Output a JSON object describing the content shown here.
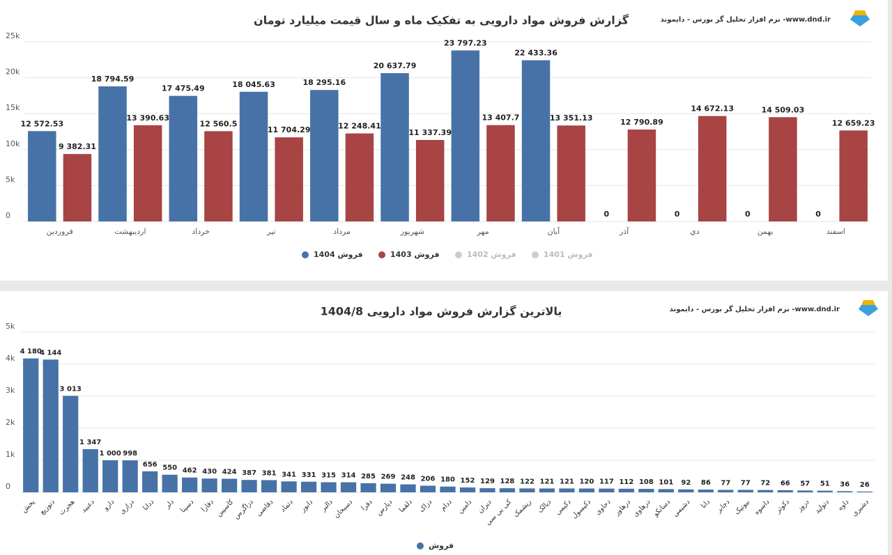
{
  "chart_data": [
    {
      "type": "bar",
      "title": "گزارش فروش مواد دارویی به تفکیک ماه و سال قیمت میلیارد تومان",
      "source": "نرم افزار تحلیل گر بورس - دایموند -www.dnd.ir",
      "categories": [
        "فروردین",
        "اردیبهشت",
        "خرداد",
        "تیر",
        "مرداد",
        "شهریور",
        "مهر",
        "آبان",
        "آذر",
        "دي",
        "بهمن",
        "اسفند"
      ],
      "series": [
        {
          "name": "فروش 1404",
          "color": "#4672a7",
          "values": [
            12572.53,
            18794.59,
            17475.49,
            18045.63,
            18295.16,
            20637.79,
            23797.23,
            22433.36,
            0,
            0,
            0,
            0
          ],
          "value_labels": [
            "12 572.53",
            "18 794.59",
            "17 475.49",
            "18 045.63",
            "18 295.16",
            "20 637.79",
            "23 797.23",
            "22 433.36",
            "0",
            "0",
            "0",
            "0"
          ]
        },
        {
          "name": "فروش 1403",
          "color": "#a84444",
          "values": [
            9382.31,
            13390.63,
            12560.5,
            11704.29,
            12248.41,
            11337.39,
            13407.7,
            13351.13,
            12790.89,
            14672.13,
            14509.03,
            12659.23
          ],
          "value_labels": [
            "9 382.31",
            "13 390.63",
            "12 560.5",
            "11 704.29",
            "12 248.41",
            "11 337.39",
            "13 407.7",
            "13 351.13",
            "12 790.89",
            "14 672.13",
            "14 509.03",
            "12 659.23"
          ]
        },
        {
          "name": "فروش 1402",
          "color": "#cccccc",
          "visible": false,
          "values": [
            null,
            null,
            null,
            null,
            null,
            null,
            null,
            null,
            null,
            null,
            null,
            null
          ]
        },
        {
          "name": "فروش 1401",
          "color": "#cccccc",
          "visible": false,
          "values": [
            null,
            null,
            null,
            null,
            null,
            null,
            null,
            null,
            null,
            null,
            null,
            null
          ]
        }
      ],
      "ylim": [
        0,
        25000
      ],
      "yticks": [
        0,
        {
          "value": 5000,
          "label": "5k"
        },
        {
          "value": 10000,
          "label": "10k"
        },
        {
          "value": 15000,
          "label": "15k"
        },
        {
          "value": 20000,
          "label": "20k"
        },
        {
          "value": 25000,
          "label": "25k"
        }
      ],
      "grid": true
    },
    {
      "type": "bar",
      "title": "بالاترین گزارش فروش مواد دارویی 1404/8",
      "source": "نرم افزار تحلیل گر بورس - دایموند -www.dnd.ir",
      "categories": [
        "پخش",
        "دتوزیع",
        "هجرت",
        "دعبید",
        "دارو",
        "درازی",
        "ددانا",
        "دلر",
        "دسینا",
        "دفارا",
        "کاسپین",
        "دزاگرس",
        "دقاضی",
        "دتماد",
        "دابور",
        "دالبر",
        "دسبحان",
        "دفرا",
        "دپارس",
        "دلقما",
        "دزاک",
        "ددام",
        "دامین",
        "دیران",
        "کی بی سی",
        "ریشمک",
        "دیالک",
        "دکیمی",
        "دکپسول",
        "دحاوی",
        "درهاور",
        "درهاوی",
        "دسانکو",
        "دشیمی",
        "دانا",
        "دجابر",
        "بیوتیک",
        "داسوه",
        "دکوثر",
        "دروز",
        "دتولید",
        "داوه",
        "دشیری"
      ],
      "series": [
        {
          "name": "فروش",
          "color": "#4672a7",
          "values": [
            4180,
            4144,
            3013,
            1347,
            1000,
            998,
            656,
            550,
            462,
            430,
            424,
            387,
            381,
            341,
            331,
            315,
            314,
            285,
            269,
            248,
            206,
            180,
            152,
            129,
            128,
            122,
            121,
            121,
            120,
            117,
            112,
            108,
            101,
            92,
            86,
            77,
            77,
            72,
            66,
            57,
            51,
            36,
            26
          ],
          "value_labels": [
            "4 180",
            "4 144",
            "3 013",
            "1 347",
            "1 000",
            "998",
            "656",
            "550",
            "462",
            "430",
            "424",
            "387",
            "381",
            "341",
            "331",
            "315",
            "314",
            "285",
            "269",
            "248",
            "206",
            "180",
            "152",
            "129",
            "128",
            "122",
            "121",
            "121",
            "120",
            "117",
            "112",
            "108",
            "101",
            "92",
            "86",
            "77",
            "77",
            "72",
            "66",
            "57",
            "51",
            "36",
            "26"
          ]
        }
      ],
      "ylim": [
        0,
        5000
      ],
      "yticks": [
        0,
        {
          "value": 1000,
          "label": "1k"
        },
        {
          "value": 2000,
          "label": "2k"
        },
        {
          "value": 3000,
          "label": "3k"
        },
        {
          "value": 4000,
          "label": "4k"
        },
        {
          "value": 5000,
          "label": "5k"
        }
      ],
      "grid": true
    }
  ]
}
